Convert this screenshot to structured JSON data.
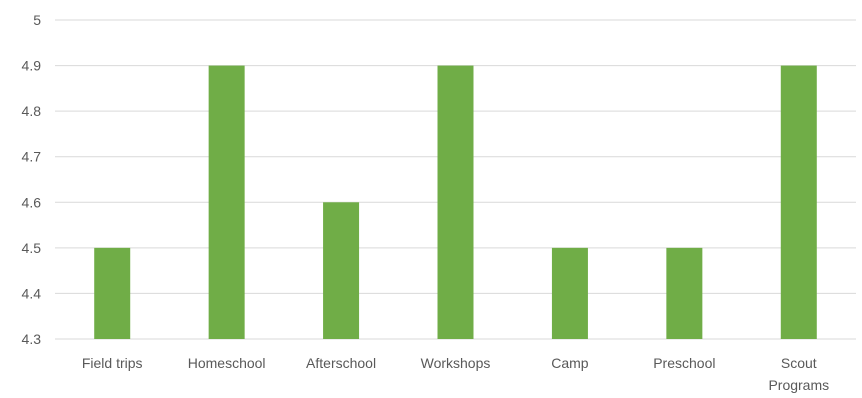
{
  "chart_data": {
    "type": "bar",
    "categories": [
      [
        "Field trips"
      ],
      [
        "Homeschool"
      ],
      [
        "Afterschool"
      ],
      [
        "Workshops"
      ],
      [
        "Camp"
      ],
      [
        "Preschool"
      ],
      [
        "Scout",
        "Programs"
      ]
    ],
    "values": [
      4.5,
      4.9,
      4.6,
      4.9,
      4.5,
      4.5,
      4.9
    ],
    "yticks": [
      "4.3",
      "4.4",
      "4.5",
      "4.6",
      "4.7",
      "4.8",
      "4.9",
      "5"
    ],
    "ylim": [
      4.3,
      5
    ],
    "grid": true,
    "legend": "none",
    "bar_color": "#70ad47",
    "grid_color": "#d9d9d9",
    "label_color": "#595959"
  }
}
